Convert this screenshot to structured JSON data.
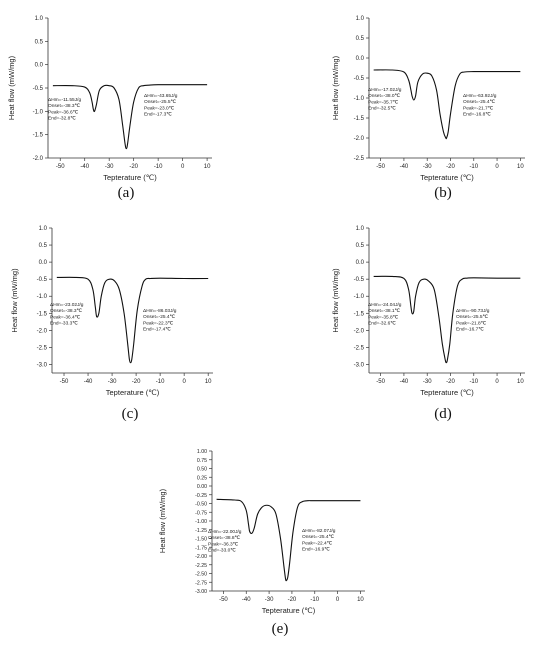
{
  "chart_data": [
    {
      "id": "a",
      "type": "line",
      "caption": "(a)",
      "xlabel": "Tepterature (℃)",
      "ylabel": "Heat flow (mW/mg)",
      "xlim": [
        -55,
        12
      ],
      "ylim": [
        -2.0,
        1.0
      ],
      "xticks": [
        -50,
        -40,
        -30,
        -20,
        -10,
        0,
        10
      ],
      "yticks": [
        1.0,
        0.5,
        0.0,
        -0.5,
        -1.0,
        -1.5,
        -2.0
      ],
      "ytick_labels": [
        "1.0",
        "0.5",
        "0.0",
        "-0.5",
        "-1.0",
        "-1.5",
        "-2.0"
      ],
      "series": [
        {
          "x": [
            -53,
            -45,
            -40,
            -38,
            -37,
            -36.5,
            -36,
            -35.2,
            -34,
            -32,
            -30,
            -28,
            -26,
            -24.5,
            -23.5,
            -23,
            -22.5,
            -21.5,
            -20,
            -18,
            -16,
            -14,
            -10,
            0,
            10
          ],
          "y": [
            -0.45,
            -0.45,
            -0.48,
            -0.6,
            -0.8,
            -0.95,
            -1.0,
            -0.85,
            -0.55,
            -0.45,
            -0.45,
            -0.5,
            -0.75,
            -1.3,
            -1.7,
            -1.8,
            -1.7,
            -1.3,
            -0.8,
            -0.5,
            -0.45,
            -0.44,
            -0.43,
            -0.43,
            -0.43
          ]
        }
      ],
      "annotations": [
        {
          "lines": [
            "ΔHm=-11.55J/g",
            "Onset=-38.3℃",
            "Peak=-36.6℃",
            "End=-32.8℃"
          ],
          "align": "left"
        },
        {
          "lines": [
            "ΔHm=-43.65J/g",
            "Onset=-25.5℃",
            "Peak=-23.0℃",
            "End=-17.3℃"
          ],
          "align": "right"
        }
      ]
    },
    {
      "id": "b",
      "type": "line",
      "caption": "(b)",
      "xlabel": "Tepterature (℃)",
      "ylabel": "Heat flow (mW/mg)",
      "xlim": [
        -55,
        12
      ],
      "ylim": [
        -2.5,
        1.0
      ],
      "xticks": [
        -50,
        -40,
        -30,
        -20,
        -10,
        0,
        10
      ],
      "yticks": [
        1.0,
        0.5,
        0.0,
        -0.5,
        -1.0,
        -1.5,
        -2.0,
        -2.5
      ],
      "ytick_labels": [
        "1.0",
        "0.5",
        "0.0",
        "-0.5",
        "-1.0",
        "-1.5",
        "-2.0",
        "-2.5"
      ],
      "series": [
        {
          "x": [
            -53,
            -45,
            -40,
            -38,
            -37,
            -36.5,
            -35.8,
            -35,
            -34,
            -32,
            -30,
            -28,
            -26,
            -24.5,
            -23,
            -22,
            -21.7,
            -21,
            -20,
            -18,
            -16,
            -14,
            -10,
            0,
            10
          ],
          "y": [
            -0.3,
            -0.3,
            -0.35,
            -0.55,
            -0.8,
            -0.95,
            -1.05,
            -0.95,
            -0.6,
            -0.4,
            -0.38,
            -0.45,
            -0.8,
            -1.4,
            -1.85,
            -2.0,
            -2.0,
            -1.85,
            -1.4,
            -0.7,
            -0.4,
            -0.35,
            -0.34,
            -0.34,
            -0.34
          ]
        }
      ],
      "annotations": [
        {
          "lines": [
            "ΔHm=-17.02J/g",
            "Onset=-38.0℃",
            "Peak=-35.7℃",
            "End=-32.5℃"
          ],
          "align": "left"
        },
        {
          "lines": [
            "ΔHm=-63.92J/g",
            "Onset=-25.4℃",
            "Peak=-21.7℃",
            "End=-16.8℃"
          ],
          "align": "right"
        }
      ]
    },
    {
      "id": "c",
      "type": "line",
      "caption": "(c)",
      "xlabel": "Tepterature (℃)",
      "ylabel": "Heat flow (mW/mg)",
      "xlim": [
        -55,
        12
      ],
      "ylim": [
        -3.25,
        1.0
      ],
      "xticks": [
        -50,
        -40,
        -30,
        -20,
        -10,
        0,
        10
      ],
      "yticks": [
        1.0,
        0.5,
        0.0,
        -0.5,
        -1.0,
        -1.5,
        -2.0,
        -2.5,
        -3.0
      ],
      "ytick_labels": [
        "1.0",
        "0.5",
        "0.0",
        "-0.5",
        "-1.0",
        "-1.5",
        "-2.0",
        "-2.5",
        "-3.0"
      ],
      "series": [
        {
          "x": [
            -53,
            -45,
            -40,
            -38,
            -37,
            -36.4,
            -35.5,
            -34.5,
            -33,
            -31,
            -29,
            -27,
            -25,
            -23.5,
            -22.8,
            -22.3,
            -21.8,
            -21,
            -19.5,
            -17.5,
            -16,
            -14,
            -10,
            0,
            10
          ],
          "y": [
            -0.45,
            -0.45,
            -0.5,
            -0.8,
            -1.3,
            -1.6,
            -1.5,
            -1.0,
            -0.6,
            -0.5,
            -0.55,
            -0.8,
            -1.5,
            -2.4,
            -2.85,
            -2.95,
            -2.85,
            -2.4,
            -1.4,
            -0.7,
            -0.5,
            -0.48,
            -0.47,
            -0.48,
            -0.48
          ]
        }
      ],
      "annotations": [
        {
          "lines": [
            "ΔHm=-23.02J/g",
            "Onset=-38.3℃",
            "Peak=-36.4℃",
            "End=-33.3℃"
          ],
          "align": "left"
        },
        {
          "lines": [
            "ΔHm=-86.03J/g",
            "Onset=-25.4℃",
            "Peak=-22.3℃",
            "End=-17.4℃"
          ],
          "align": "right"
        }
      ]
    },
    {
      "id": "d",
      "type": "line",
      "caption": "(d)",
      "xlabel": "Tepterature (℃)",
      "ylabel": "Heat flow (mW/mg)",
      "xlim": [
        -55,
        12
      ],
      "ylim": [
        -3.25,
        1.0
      ],
      "xticks": [
        -50,
        -40,
        -30,
        -20,
        -10,
        0,
        10
      ],
      "yticks": [
        1.0,
        0.5,
        0.0,
        -0.5,
        -1.0,
        -1.5,
        -2.0,
        -2.5,
        -3.0
      ],
      "ytick_labels": [
        "1.0",
        "0.5",
        "0.0",
        "-0.5",
        "-1.0",
        "-1.5",
        "-2.0",
        "-2.5",
        "-3.0"
      ],
      "series": [
        {
          "x": [
            -53,
            -45,
            -40,
            -38,
            -37,
            -36.5,
            -35.8,
            -35,
            -33.5,
            -31.5,
            -29.5,
            -27,
            -25,
            -23.5,
            -22.3,
            -21.8,
            -21.3,
            -20.3,
            -19,
            -17,
            -15,
            -13,
            -10,
            0,
            10
          ],
          "y": [
            -0.42,
            -0.42,
            -0.48,
            -0.8,
            -1.3,
            -1.5,
            -1.45,
            -1.0,
            -0.6,
            -0.5,
            -0.55,
            -0.8,
            -1.6,
            -2.4,
            -2.85,
            -2.95,
            -2.85,
            -2.4,
            -1.5,
            -0.7,
            -0.5,
            -0.47,
            -0.46,
            -0.47,
            -0.47
          ]
        }
      ],
      "annotations": [
        {
          "lines": [
            "ΔHm=-24.04J/g",
            "Onset=-38.1℃",
            "Peak=-35.8℃",
            "End=-32.6℃"
          ],
          "align": "left"
        },
        {
          "lines": [
            "ΔHm=-90.73J/g",
            "Onset=-25.5℃",
            "Peak=-21.8℃",
            "End=-16.7℃"
          ],
          "align": "right"
        }
      ]
    },
    {
      "id": "e",
      "type": "line",
      "caption": "(e)",
      "xlabel": "Tepterature (℃)",
      "ylabel": "Heat flow (mW/mg)",
      "xlim": [
        -55,
        12
      ],
      "ylim": [
        -3.0,
        1.0
      ],
      "xticks": [
        -50,
        -40,
        -30,
        -20,
        -10,
        0,
        10
      ],
      "yticks": [
        1.0,
        0.75,
        0.5,
        0.25,
        0.0,
        -0.25,
        -0.5,
        -0.75,
        -1.0,
        -1.25,
        -1.5,
        -1.75,
        -2.0,
        -2.25,
        -2.5,
        -2.75,
        -3.0
      ],
      "ytick_labels": [
        "1.00",
        "0.75",
        "0.50",
        "0.25",
        "0.00",
        "-0.25",
        "-0.50",
        "-0.75",
        "-1.00",
        "-1.25",
        "-1.50",
        "-1.75",
        "-2.00",
        "-2.25",
        "-2.50",
        "-2.75",
        "-3.00"
      ],
      "series": [
        {
          "x": [
            -53,
            -45,
            -42,
            -40,
            -39,
            -38.5,
            -37.5,
            -36.5,
            -35,
            -33,
            -31,
            -29,
            -27,
            -25,
            -23.5,
            -22.8,
            -22.4,
            -21.8,
            -21,
            -19.5,
            -17.5,
            -15.5,
            -13,
            -10,
            0,
            10
          ],
          "y": [
            -0.38,
            -0.4,
            -0.45,
            -0.7,
            -1.1,
            -1.3,
            -1.35,
            -1.2,
            -0.8,
            -0.6,
            -0.55,
            -0.6,
            -0.8,
            -1.5,
            -2.3,
            -2.65,
            -2.7,
            -2.6,
            -2.2,
            -1.3,
            -0.6,
            -0.45,
            -0.42,
            -0.42,
            -0.42,
            -0.42
          ]
        }
      ],
      "annotations": [
        {
          "lines": [
            "ΔHm=-22.00J/g",
            "Onset=-38.8℃",
            "Peak=-36.3℃",
            "End=-33.0℃"
          ],
          "align": "left"
        },
        {
          "lines": [
            "ΔHm=-82.07J/g",
            "Onset=-25.4℃",
            "Peak=-22.4℃",
            "End=-16.9℃"
          ],
          "align": "right"
        }
      ]
    }
  ]
}
